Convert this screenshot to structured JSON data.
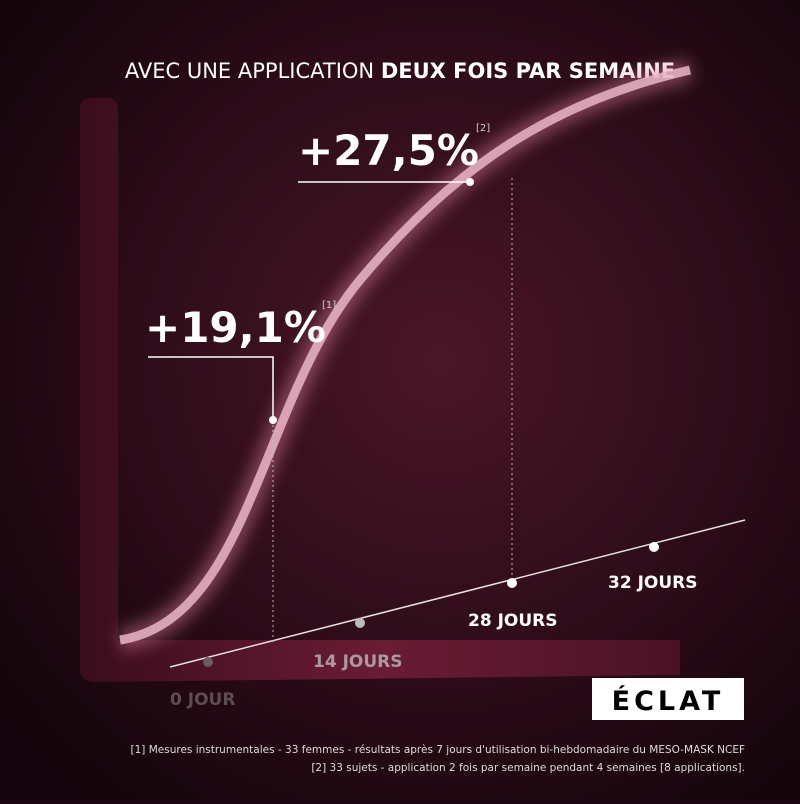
{
  "header": {
    "title_regular": "AVEC UNE APPLICATION",
    "title_bold": "DEUX FOIS PAR SEMAINE"
  },
  "callouts": [
    {
      "value": "+19,1%",
      "note": "[1]"
    },
    {
      "value": "+27,5%",
      "note": "[2]"
    }
  ],
  "axis_labels": [
    "0 JOUR",
    "14 JOURS",
    "28 JOURS",
    "32 JOURS"
  ],
  "badge": "ÉCLAT",
  "footnotes": [
    "[1] Mesures instrumentales - 33 femmes - résultats après 7 jours d'utilisation bi-hebdomadaire du MESO-MASK NCEF",
    "[2] 33 sujets - application 2 fois par semaine pendant 4 semaines [8 applications]."
  ]
}
